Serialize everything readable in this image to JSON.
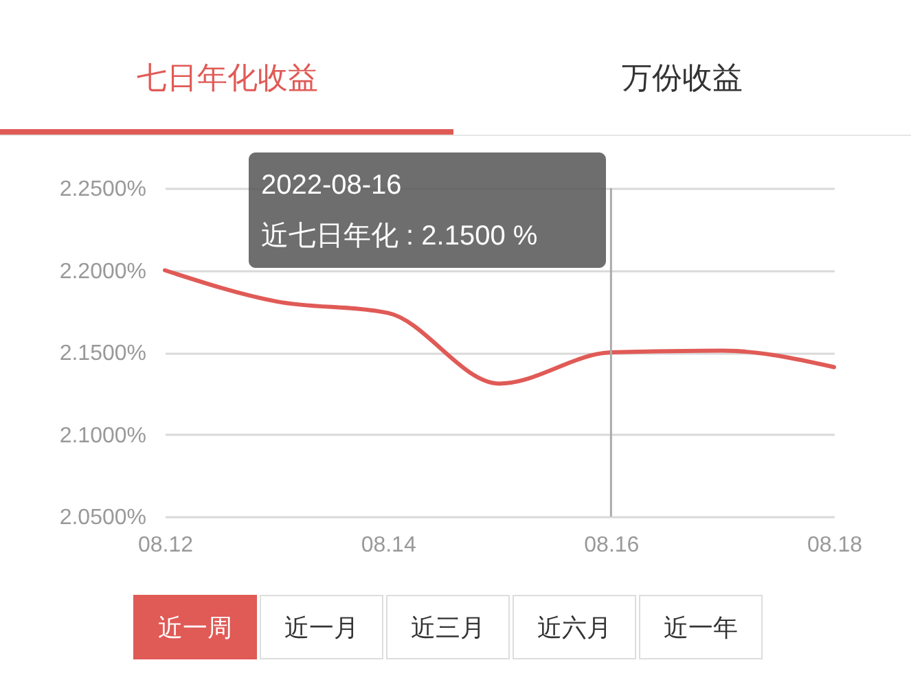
{
  "chart_data": {
    "type": "line",
    "title": "七日年化收益",
    "categories": [
      "08.12",
      null,
      "08.14",
      null,
      "08.16",
      null,
      "08.18"
    ],
    "series": [
      {
        "color": "#e05a56",
        "values": [
          2.2,
          2.181,
          2.174,
          2.131,
          2.15,
          2.151,
          2.141
        ]
      }
    ],
    "ylim": [
      2.05,
      2.25
    ],
    "yticks": [
      {
        "value": 2.05,
        "label": "2.0500%"
      },
      {
        "value": 2.1,
        "label": "2.1000%"
      },
      {
        "value": 2.15,
        "label": "2.1500%"
      },
      {
        "value": 2.2,
        "label": "2.2000%"
      },
      {
        "value": 2.25,
        "label": "2.2500%"
      }
    ],
    "grid": "y",
    "marker": "none",
    "line_style": "solid",
    "ref_lines": [
      {
        "axis": "x",
        "value": "08.16",
        "color": "#aaaaaa"
      }
    ],
    "annotations": [
      "2022-08-16",
      "近七日年化 : 2.1500 %",
      "万份收益",
      "近一周",
      "近一月",
      "近三月",
      "近六月",
      "近一年"
    ]
  }
}
